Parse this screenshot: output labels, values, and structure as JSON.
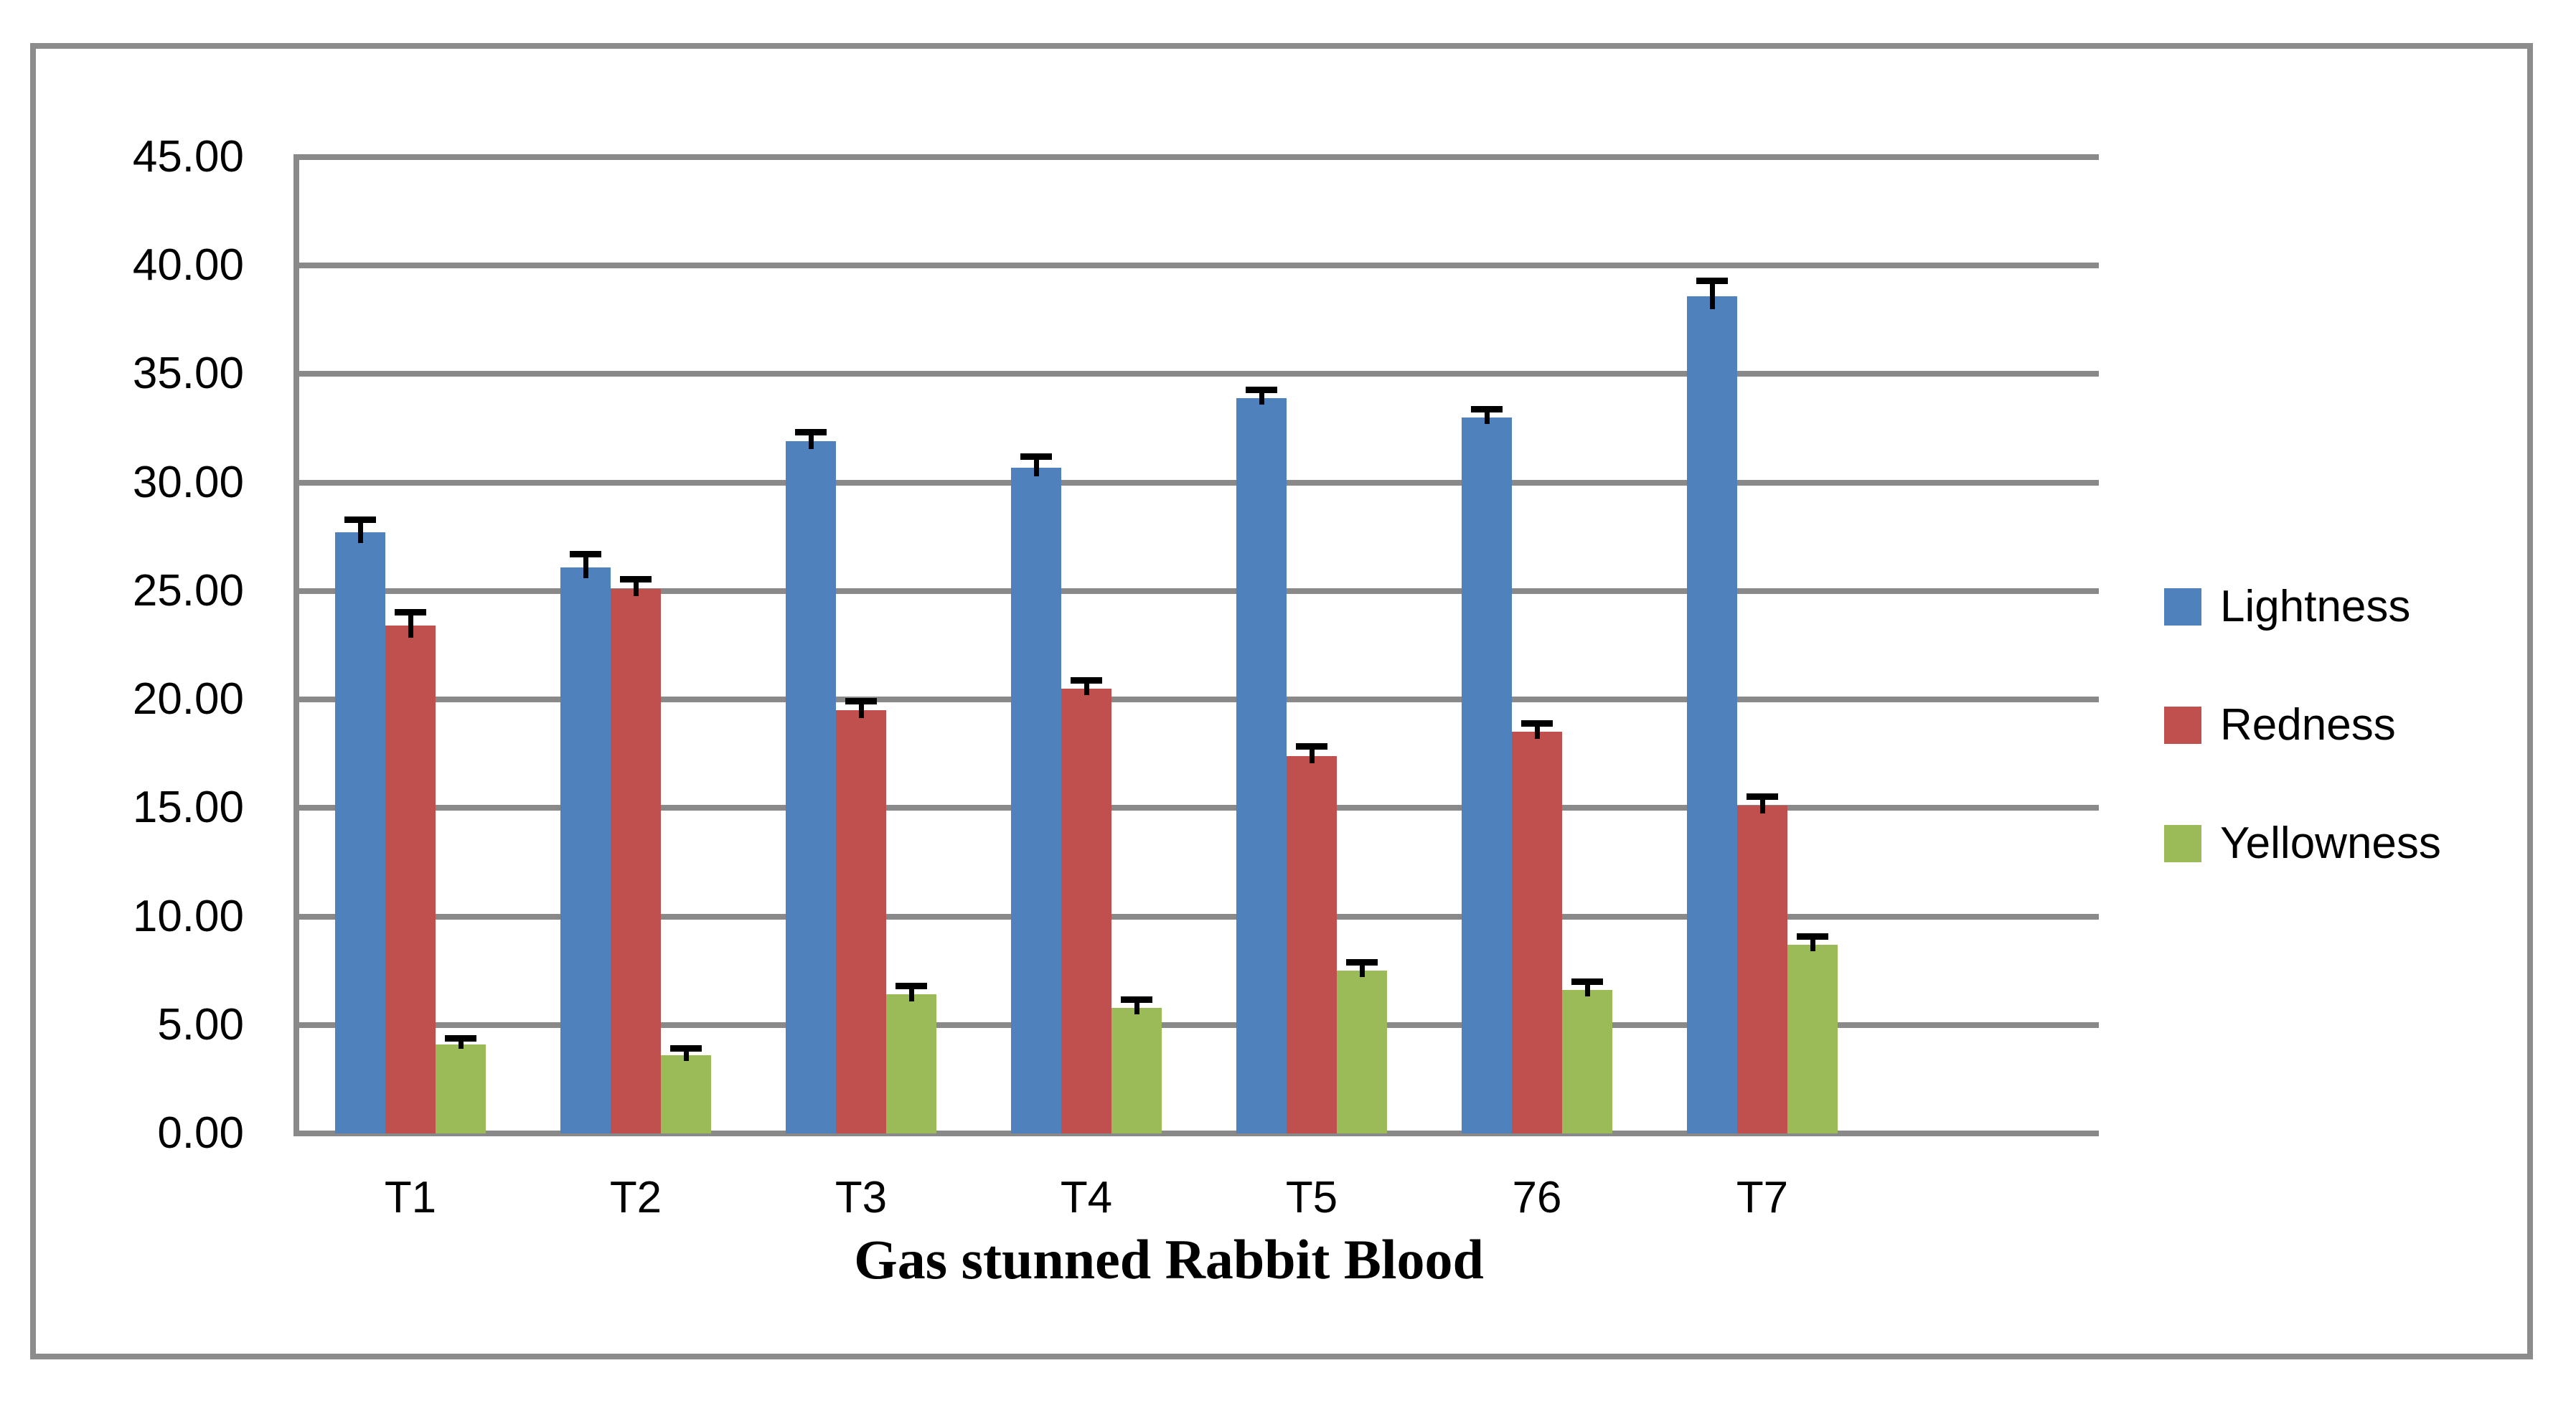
{
  "chart_data": {
    "type": "bar",
    "title": "",
    "xlabel": "Gas stunned Rabbit Blood",
    "ylabel": "",
    "categories": [
      "T1",
      "T2",
      "T3",
      "T4",
      "T5",
      "76",
      "T7"
    ],
    "series": [
      {
        "name": "Lightness",
        "color": "#4F81BD",
        "values": [
          27.7,
          26.1,
          31.9,
          30.7,
          33.9,
          33.0,
          38.6
        ],
        "errors": [
          0.5,
          0.5,
          0.35,
          0.4,
          0.3,
          0.3,
          0.6
        ]
      },
      {
        "name": "Redness",
        "color": "#C0504D",
        "values": [
          23.4,
          25.1,
          19.5,
          20.5,
          17.4,
          18.5,
          15.1
        ],
        "errors": [
          0.55,
          0.35,
          0.35,
          0.3,
          0.35,
          0.3,
          0.35
        ]
      },
      {
        "name": "Yellowness",
        "color": "#9BBB59",
        "values": [
          4.1,
          3.6,
          6.4,
          5.8,
          7.5,
          6.6,
          8.7
        ],
        "errors": [
          0.2,
          0.25,
          0.3,
          0.3,
          0.3,
          0.3,
          0.3
        ]
      }
    ],
    "ylim": [
      0,
      45
    ],
    "y_step": 5,
    "y_ticks": [
      "0.00",
      "5.00",
      "10.00",
      "15.00",
      "20.00",
      "25.00",
      "30.00",
      "35.00",
      "40.00",
      "45.00"
    ],
    "grid": true,
    "error_bars": true,
    "legend_position": "right",
    "colors": {
      "gridline": "#898989",
      "figure_border": "#8C8C8C",
      "background": "#FFFFFF",
      "text": "#000000"
    }
  }
}
